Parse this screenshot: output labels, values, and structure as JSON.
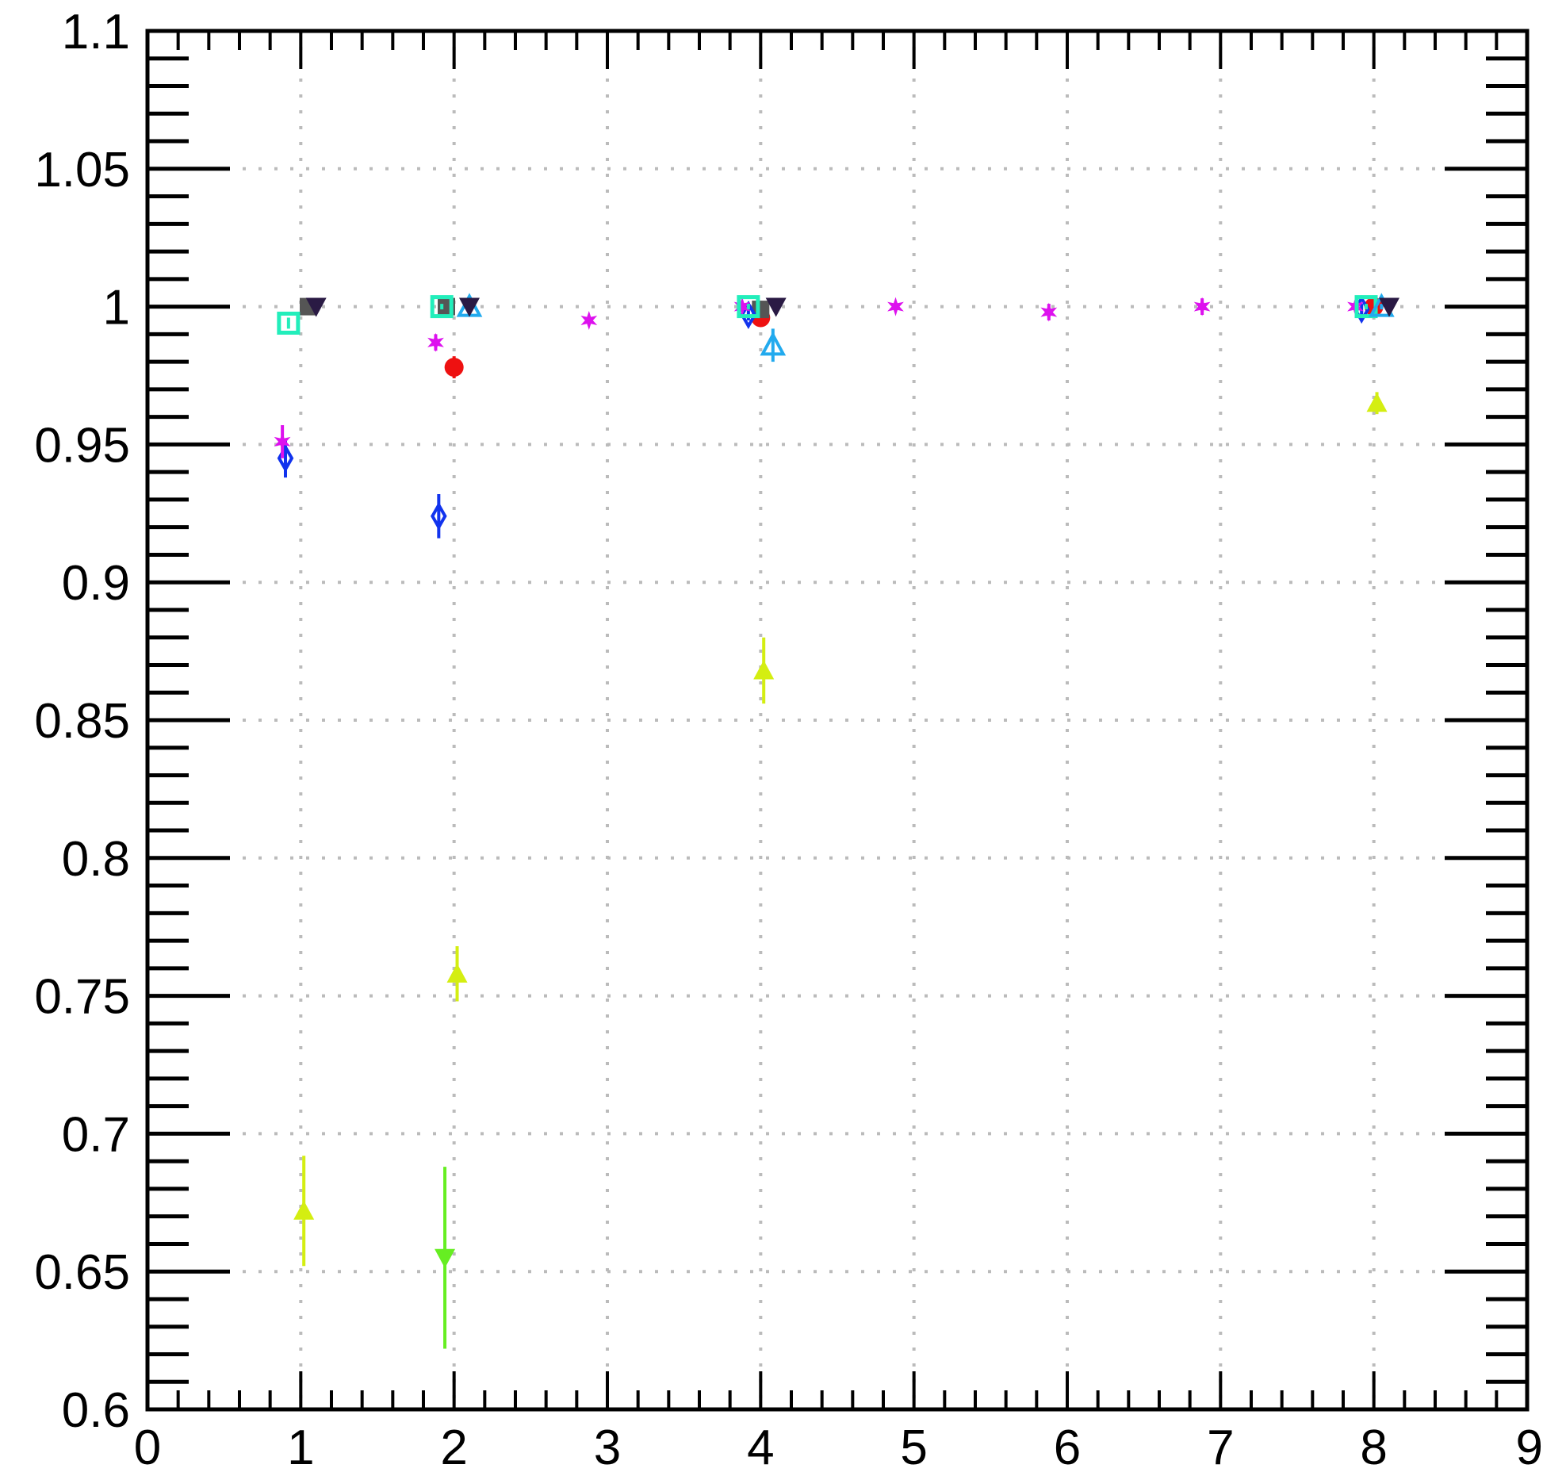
{
  "chart_data": {
    "type": "scatter",
    "title": "",
    "xlabel": "",
    "ylabel": "",
    "xlim": [
      0,
      9
    ],
    "ylim": [
      0.6,
      1.1
    ],
    "grid": true,
    "x_ticks": [
      "0",
      "1",
      "2",
      "3",
      "4",
      "5",
      "6",
      "7",
      "8",
      "9"
    ],
    "y_ticks": [
      "0.6",
      "0.65",
      "0.7",
      "0.75",
      "0.8",
      "0.85",
      "0.9",
      "0.95",
      "1",
      "1.05",
      "1.1"
    ],
    "series": [
      {
        "marker": "circle-filled",
        "color": "#ee1111",
        "points": [
          {
            "x": 2.0,
            "y": 0.978,
            "err": 0.004
          },
          {
            "x": 4.0,
            "y": 0.996,
            "err": 0.002
          },
          {
            "x": 8.0,
            "y": 1.0,
            "err": 0.001
          }
        ]
      },
      {
        "marker": "square-filled",
        "color": "#555555",
        "points": [
          {
            "x": 1.05,
            "y": 1.0,
            "err": 0.001
          },
          {
            "x": 1.95,
            "y": 1.0,
            "err": 0.001
          },
          {
            "x": 4.0,
            "y": 0.999,
            "err": 0.001
          }
        ]
      },
      {
        "marker": "triangle-up-filled",
        "color": "#d4ee11",
        "points": [
          {
            "x": 1.02,
            "y": 0.672,
            "err": 0.02
          },
          {
            "x": 2.02,
            "y": 0.758,
            "err": 0.01
          },
          {
            "x": 4.02,
            "y": 0.868,
            "err": 0.012
          },
          {
            "x": 8.02,
            "y": 0.965,
            "err": 0.004
          }
        ]
      },
      {
        "marker": "triangle-down-filled",
        "color": "#66ee22",
        "points": [
          {
            "x": 1.94,
            "y": 0.655,
            "err": 0.033
          }
        ]
      },
      {
        "marker": "diamond-open",
        "color": "#1133ee",
        "points": [
          {
            "x": 0.9,
            "y": 0.945,
            "err": 0.007
          },
          {
            "x": 1.9,
            "y": 0.924,
            "err": 0.008
          },
          {
            "x": 3.92,
            "y": 0.997,
            "err": 0.002
          },
          {
            "x": 7.92,
            "y": 0.999,
            "err": 0.002
          }
        ]
      },
      {
        "marker": "star",
        "color": "#dd11ee",
        "points": [
          {
            "x": 0.88,
            "y": 0.951,
            "err": 0.006
          },
          {
            "x": 1.88,
            "y": 0.987,
            "err": 0.003
          },
          {
            "x": 2.88,
            "y": 0.995,
            "err": 0.001
          },
          {
            "x": 3.88,
            "y": 1.0,
            "err": 0.001
          },
          {
            "x": 4.88,
            "y": 1.0,
            "err": 0.001
          },
          {
            "x": 5.88,
            "y": 0.998,
            "err": 0.003
          },
          {
            "x": 6.88,
            "y": 1.0,
            "err": 0.003
          },
          {
            "x": 7.88,
            "y": 1.0,
            "err": 0.001
          }
        ]
      },
      {
        "marker": "square-open",
        "color": "#22eebb",
        "points": [
          {
            "x": 0.92,
            "y": 0.994,
            "err": 0.002
          },
          {
            "x": 1.92,
            "y": 1.0,
            "err": 0.001
          },
          {
            "x": 3.92,
            "y": 1.0,
            "err": 0.001
          },
          {
            "x": 7.95,
            "y": 1.0,
            "err": 0.001
          }
        ]
      },
      {
        "marker": "triangle-up-open",
        "color": "#22aaee",
        "points": [
          {
            "x": 2.1,
            "y": 1.0,
            "err": 0.001
          },
          {
            "x": 4.08,
            "y": 0.986,
            "err": 0.006
          },
          {
            "x": 8.05,
            "y": 1.0,
            "err": 0.001
          }
        ]
      },
      {
        "marker": "triangle-down-filled",
        "color": "#2a1a44",
        "points": [
          {
            "x": 1.1,
            "y": 1.0,
            "err": 0.001
          },
          {
            "x": 2.1,
            "y": 1.0,
            "err": 0.001
          },
          {
            "x": 4.1,
            "y": 1.0,
            "err": 0.001
          },
          {
            "x": 8.1,
            "y": 1.0,
            "err": 0.001
          }
        ]
      }
    ]
  }
}
